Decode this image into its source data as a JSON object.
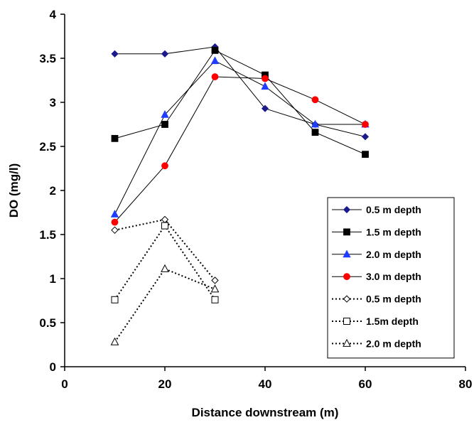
{
  "chart_data": {
    "type": "line",
    "title": "",
    "xlabel": "Distance downstream (m)",
    "ylabel": "DO  (mg/l)",
    "xlim": [
      0,
      80
    ],
    "ylim": [
      0,
      4
    ],
    "xticks": [
      0,
      20,
      40,
      60,
      80
    ],
    "yticks": [
      0,
      0.5,
      1,
      1.5,
      2,
      2.5,
      3,
      3.5,
      4
    ],
    "xtick_labels": [
      "0",
      "20",
      "40",
      "60",
      "80"
    ],
    "ytick_labels": [
      "0",
      "0.5",
      "1",
      "1.5",
      "2",
      "2.5",
      "3",
      "3.5",
      "4"
    ],
    "grid": false,
    "legend_position": "right",
    "series": [
      {
        "name": "0.5 m depth",
        "marker": "diamond",
        "fill": "#1a1a8c",
        "line_color": "#000000",
        "line_style": "solid",
        "x": [
          10,
          20,
          30,
          40,
          50,
          60
        ],
        "y": [
          3.55,
          3.55,
          3.63,
          2.93,
          2.75,
          2.61
        ]
      },
      {
        "name": "1.5 m depth",
        "marker": "square",
        "fill": "#000000",
        "line_color": "#000000",
        "line_style": "solid",
        "x": [
          10,
          20,
          30,
          40,
          50,
          60
        ],
        "y": [
          2.59,
          2.75,
          3.59,
          3.31,
          2.66,
          2.41
        ]
      },
      {
        "name": "2.0 m depth",
        "marker": "triangle",
        "fill": "#1f3dff",
        "line_color": "#000000",
        "line_style": "solid",
        "x": [
          10,
          20,
          30,
          40,
          50,
          60
        ],
        "y": [
          1.73,
          2.86,
          3.47,
          3.18,
          2.75,
          2.75
        ]
      },
      {
        "name": "3.0 m depth",
        "marker": "circle",
        "fill": "#ff0000",
        "line_color": "#000000",
        "line_style": "solid",
        "x": [
          10,
          20,
          30,
          40,
          50,
          60
        ],
        "y": [
          1.64,
          2.28,
          3.29,
          3.27,
          3.03,
          2.75
        ]
      },
      {
        "name": "0.5 m depth",
        "marker": "diamond",
        "fill": "#ffffff",
        "line_color": "#000000",
        "line_style": "dotted",
        "x": [
          10,
          20,
          30
        ],
        "y": [
          1.55,
          1.67,
          0.98
        ]
      },
      {
        "name": "1.5m depth",
        "marker": "square",
        "fill": "#ffffff",
        "line_color": "#000000",
        "line_style": "dotted",
        "x": [
          10,
          20,
          30
        ],
        "y": [
          0.76,
          1.6,
          0.76
        ]
      },
      {
        "name": "2.0 m depth",
        "marker": "triangle",
        "fill": "#ffffff",
        "line_color": "#000000",
        "line_style": "dotted",
        "x": [
          10,
          20,
          30
        ],
        "y": [
          0.28,
          1.11,
          0.88
        ]
      }
    ]
  }
}
